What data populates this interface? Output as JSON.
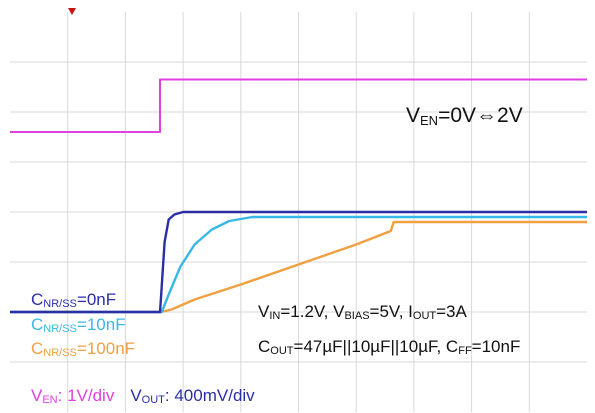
{
  "chart_data": {
    "type": "line",
    "title": "",
    "annotation": {
      "enable_label": {
        "prefix": "V",
        "sub": "EN",
        "rest": "=0V⇔2V"
      }
    },
    "legend": [
      {
        "prefix": "C",
        "sub": "NR/SS",
        "rest": "=0nF",
        "color": "#2b2fa6"
      },
      {
        "prefix": "C",
        "sub": "NR/SS",
        "rest": "=10nF",
        "color": "#38b8e6"
      },
      {
        "prefix": "C",
        "sub": "NR/SS",
        "rest": "=100nF",
        "color": "#f0a040"
      }
    ],
    "conditions": {
      "line1": [
        {
          "t": "V"
        },
        {
          "s": "IN"
        },
        {
          "t": "=1.2V, V"
        },
        {
          "s": "BIAS"
        },
        {
          "t": "=5V, I"
        },
        {
          "s": "OUT"
        },
        {
          "t": "=3A"
        }
      ],
      "line2": [
        {
          "t": "C"
        },
        {
          "s": "OUT"
        },
        {
          "t": "=47µF||10µF||10µF, C"
        },
        {
          "s": "FF"
        },
        {
          "t": "=10nF"
        }
      ]
    },
    "scale": {
      "ven_prefix": "V",
      "ven_sub": "EN",
      "ven_rest": ": 1V/div",
      "vout_prefix": "V",
      "vout_sub": "OUT",
      "vout_rest": ": 400mV/div",
      "ven_color": "#e040e0",
      "vout_color": "#2b2fa6"
    },
    "grid": true,
    "divisions_x": 10,
    "divisions_y": 8,
    "x_range_div": [
      0,
      10
    ],
    "y_range_div": [
      0,
      8
    ],
    "series": [
      {
        "signal": "enable",
        "color": "#e040e0",
        "points": [
          [
            0,
            5.6
          ],
          [
            2.6,
            5.6
          ],
          [
            2.6,
            6.65
          ],
          [
            10,
            6.65
          ]
        ]
      },
      {
        "signal": "output",
        "color": "#2b2fa6",
        "points": [
          [
            0,
            2.0
          ],
          [
            2.6,
            2.0
          ],
          [
            2.62,
            2.35
          ],
          [
            2.68,
            3.4
          ],
          [
            2.75,
            3.85
          ],
          [
            2.85,
            3.95
          ],
          [
            3.0,
            4.0
          ],
          [
            10,
            4.0
          ]
        ]
      },
      {
        "signal": "output",
        "color": "#38b8e6",
        "points": [
          [
            0,
            2.0
          ],
          [
            2.63,
            2.0
          ],
          [
            2.75,
            2.35
          ],
          [
            2.95,
            2.9
          ],
          [
            3.2,
            3.35
          ],
          [
            3.5,
            3.65
          ],
          [
            3.8,
            3.82
          ],
          [
            4.2,
            3.9
          ],
          [
            10,
            3.9
          ]
        ]
      },
      {
        "signal": "output",
        "color": "#f0a040",
        "points": [
          [
            0,
            2.0
          ],
          [
            2.62,
            2.0
          ],
          [
            2.8,
            2.05
          ],
          [
            3.2,
            2.25
          ],
          [
            4.0,
            2.55
          ],
          [
            5.0,
            2.95
          ],
          [
            6.0,
            3.35
          ],
          [
            6.6,
            3.62
          ],
          [
            6.65,
            3.8
          ],
          [
            10,
            3.8
          ]
        ]
      }
    ],
    "trigger_color": "#cc1111"
  }
}
